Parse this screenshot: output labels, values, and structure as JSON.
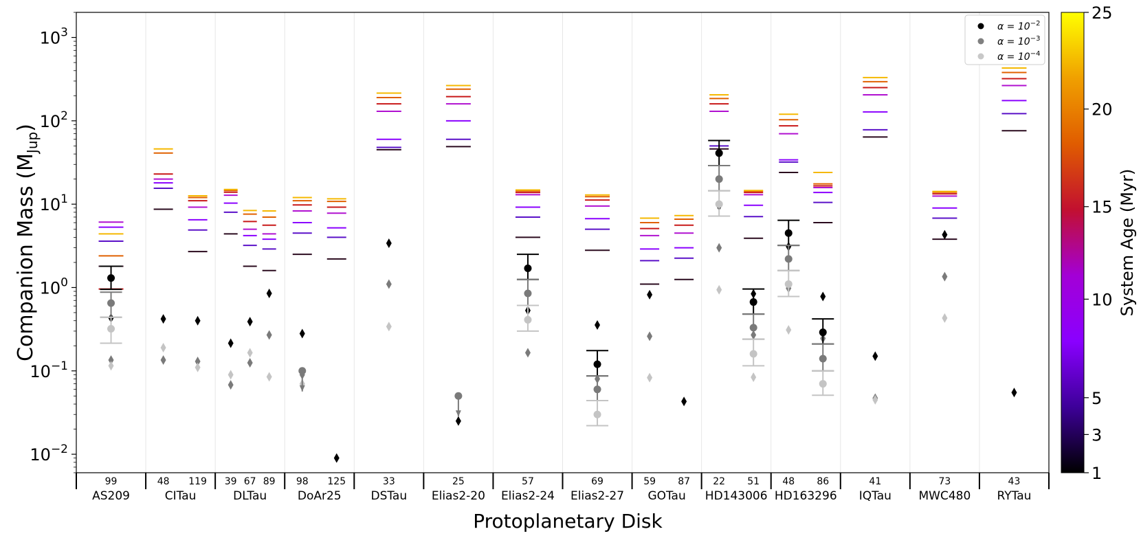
{
  "chart_data": {
    "type": "scatter",
    "xlabel": "Protoplanetary Disk",
    "ylabel": "Companion Mass (M",
    "ylabel_sub": "Jup",
    "ylabel_close": ")",
    "yscale": "log",
    "ylim": [
      0.006,
      2000
    ],
    "yticks": [
      {
        "value": 0.01,
        "base": "10",
        "exp": "−2"
      },
      {
        "value": 0.1,
        "base": "10",
        "exp": "−1"
      },
      {
        "value": 1,
        "base": "10",
        "exp": "0"
      },
      {
        "value": 10,
        "base": "10",
        "exp": "1"
      },
      {
        "value": 100,
        "base": "10",
        "exp": "2"
      },
      {
        "value": 1000,
        "base": "10",
        "exp": "3"
      }
    ],
    "legend": [
      {
        "label": "α = 10",
        "exp": "−2",
        "color": "#000000"
      },
      {
        "label": "α = 10",
        "exp": "−3",
        "color": "#808080"
      },
      {
        "label": "α = 10",
        "exp": "−4",
        "color": "#c8c8c8"
      }
    ],
    "alpha_colors": {
      "a2": "#000000",
      "a3": "#7a7a7a",
      "a4": "#c4c4c4"
    },
    "colorbar": {
      "label": "System Age (Myr)",
      "ticks": [
        "1",
        "3",
        "5",
        "10",
        "15",
        "20",
        "25"
      ],
      "stops": [
        "#000000",
        "#3d0099",
        "#8a00ff",
        "#a300d6",
        "#c21030",
        "#e05c00",
        "#f0a000",
        "#ffff00"
      ]
    },
    "age_colors": [
      "#2a0a1e",
      "#5a10c8",
      "#8a00ff",
      "#b010d0",
      "#c81818",
      "#e06000",
      "#f5b800"
    ],
    "disks": [
      {
        "name": "AS209",
        "gaps": [
          {
            "r": "99",
            "ages": [
              1.8,
              3.6,
              5.3,
              6.1,
              0.96,
              2.4,
              4.4
            ],
            "diamonds": [
              0.43,
              0.135,
              0.115
            ],
            "circles": [
              {
                "v": 1.3,
                "lo": 0.95,
                "hi": 1.8,
                "a": 2
              },
              {
                "v": 0.65,
                "lo": 0.44,
                "hi": 0.88,
                "a": 3
              },
              {
                "v": 0.32,
                "lo": 0.215,
                "hi": 0.44,
                "a": 4
              }
            ],
            "arrow": false
          }
        ]
      },
      {
        "name": "CITau",
        "gaps": [
          {
            "r": "48",
            "ages": [
              8.7,
              15.5,
              18,
              20,
              23,
              41,
              46
            ],
            "diamonds": [
              0.42,
              0.135,
              0.19
            ],
            "circles": [],
            "arrow": false
          },
          {
            "r": "119",
            "ages": [
              2.7,
              4.9,
              6.5,
              9.2,
              11,
              12,
              12.6
            ],
            "diamonds": [
              0.4,
              0.13,
              0.11
            ],
            "circles": [],
            "arrow": false
          }
        ]
      },
      {
        "name": "DLTau",
        "gaps": [
          {
            "r": "39",
            "ages": [
              4.4,
              8,
              10.3,
              12.8,
              13.9,
              14.6,
              15
            ],
            "diamonds": [
              0.215,
              0.068,
              0.09
            ],
            "circles": [],
            "arrow": false
          },
          {
            "r": "67",
            "ages": [
              1.8,
              3.2,
              4.2,
              5,
              6.2,
              7.6,
              8.4
            ],
            "diamonds": [
              0.39,
              0.125,
              0.165
            ],
            "circles": [],
            "arrow": false
          },
          {
            "r": "89",
            "ages": [
              1.6,
              2.9,
              3.8,
              4.4,
              5.6,
              7,
              8.3
            ],
            "diamonds": [
              0.85,
              0.27,
              0.085
            ],
            "circles": [],
            "arrow": false
          }
        ]
      },
      {
        "name": "DoAr25",
        "gaps": [
          {
            "r": "98",
            "ages": [
              2.5,
              4.5,
              6,
              8.3,
              9.8,
              11,
              12
            ],
            "diamonds": [
              0.28,
              0.09,
              0.07
            ],
            "circles": [
              {
                "v": 0.1,
                "lo": null,
                "hi": null,
                "a": 3
              }
            ],
            "arrow": true
          },
          {
            "r": "125",
            "ages": [
              2.2,
              4,
              5.2,
              7.8,
              9.2,
              10.8,
              11.6
            ],
            "diamonds": [
              0.009
            ],
            "circles": [],
            "arrow": false
          }
        ]
      },
      {
        "name": "DSTau",
        "gaps": [
          {
            "r": "33",
            "ages": [
              45,
              48,
              60,
              130,
              160,
              190,
              215
            ],
            "diamonds": [
              3.4,
              1.1,
              0.34
            ],
            "circles": [],
            "arrow": false
          }
        ]
      },
      {
        "name": "Elias2-20",
        "gaps": [
          {
            "r": "25",
            "ages": [
              49,
              60,
              100,
              160,
              195,
              240,
              265
            ],
            "diamonds": [
              0.025
            ],
            "circles": [
              {
                "v": 0.05,
                "lo": null,
                "hi": null,
                "a": 3
              }
            ],
            "arrow": true
          }
        ]
      },
      {
        "name": "Elias2-24",
        "gaps": [
          {
            "r": "57",
            "ages": [
              4,
              7,
              9.2,
              13,
              13.8,
              14.4,
              14.8
            ],
            "diamonds": [
              0.53,
              0.165
            ],
            "circles": [
              {
                "v": 1.7,
                "lo": 1.25,
                "hi": 2.5,
                "a": 2
              },
              {
                "v": 0.85,
                "lo": 0.61,
                "hi": 1.25,
                "a": 3
              },
              {
                "v": 0.41,
                "lo": 0.3,
                "hi": 0.61,
                "a": 4
              }
            ],
            "arrow": false
          }
        ]
      },
      {
        "name": "Elias2-27",
        "gaps": [
          {
            "r": "69",
            "ages": [
              2.8,
              5,
              6.7,
              9.5,
              11.2,
              12.3,
              12.9
            ],
            "diamonds": [
              0.355,
              0.08
            ],
            "circles": [
              {
                "v": 0.12,
                "lo": 0.087,
                "hi": 0.175,
                "a": 2
              },
              {
                "v": 0.06,
                "lo": 0.044,
                "hi": 0.087,
                "a": 3
              },
              {
                "v": 0.03,
                "lo": 0.022,
                "hi": 0.044,
                "a": 4
              }
            ],
            "arrow": false
          }
        ]
      },
      {
        "name": "GOTau",
        "gaps": [
          {
            "r": "59",
            "ages": [
              1.1,
              2.1,
              2.9,
              4.2,
              5.1,
              6,
              6.8
            ],
            "diamonds": [
              0.82,
              0.26,
              0.083
            ],
            "circles": [],
            "arrow": false
          },
          {
            "r": "87",
            "ages": [
              1.25,
              2.25,
              3,
              4.5,
              5.6,
              6.6,
              7.3
            ],
            "diamonds": [
              0.043
            ],
            "circles": [],
            "arrow": false
          }
        ]
      },
      {
        "name": "HD143006",
        "gaps": [
          {
            "r": "22",
            "ages": [
              46,
              50,
              58,
              130,
              160,
              185,
              205
            ],
            "diamonds": [
              9.5,
              3,
              0.94
            ],
            "circles": [
              {
                "v": 41,
                "lo": 29,
                "hi": 58,
                "a": 2
              },
              {
                "v": 20,
                "lo": 14.5,
                "hi": 29,
                "a": 3
              },
              {
                "v": 10,
                "lo": 7.2,
                "hi": 14.5,
                "a": 4
              }
            ],
            "arrow": false
          },
          {
            "r": "51",
            "ages": [
              3.9,
              7.1,
              9.7,
              13,
              13.8,
              14.3,
              14.6
            ],
            "diamonds": [
              0.84,
              0.27,
              0.084
            ],
            "circles": [
              {
                "v": 0.67,
                "lo": 0.48,
                "hi": 0.96,
                "a": 2
              },
              {
                "v": 0.33,
                "lo": 0.24,
                "hi": 0.48,
                "a": 3
              },
              {
                "v": 0.16,
                "lo": 0.115,
                "hi": 0.24,
                "a": 4
              }
            ],
            "arrow": false
          }
        ]
      },
      {
        "name": "HD163296",
        "gaps": [
          {
            "r": "48",
            "ages": [
              24,
              32,
              34,
              70,
              87,
              103,
              120
            ],
            "diamonds": [
              3.1,
              0.98,
              0.31
            ],
            "circles": [
              {
                "v": 4.5,
                "lo": 3.2,
                "hi": 6.4,
                "a": 2
              },
              {
                "v": 2.2,
                "lo": 1.6,
                "hi": 3.2,
                "a": 3
              },
              {
                "v": 1.1,
                "lo": 0.78,
                "hi": 1.6,
                "a": 4
              }
            ],
            "arrow": false
          },
          {
            "r": "86",
            "ages": [
              6,
              10.5,
              13.8,
              15.8,
              16.6,
              17.5,
              24
            ],
            "diamonds": [
              0.78,
              0.245
            ],
            "circles": [
              {
                "v": 0.29,
                "lo": 0.21,
                "hi": 0.42,
                "a": 2
              },
              {
                "v": 0.14,
                "lo": 0.1,
                "hi": 0.21,
                "a": 3
              },
              {
                "v": 0.07,
                "lo": 0.051,
                "hi": 0.1,
                "a": 4
              }
            ],
            "arrow": false
          }
        ]
      },
      {
        "name": "IQTau",
        "gaps": [
          {
            "r": "41",
            "ages": [
              64,
              78,
              128,
              205,
              250,
              295,
              330
            ],
            "diamonds": [
              0.15,
              0.047,
              0.045
            ],
            "circles": [],
            "arrow": false
          }
        ]
      },
      {
        "name": "MWC480",
        "gaps": [
          {
            "r": "73",
            "ages": [
              3.8,
              6.8,
              9,
              12.5,
              13.3,
              13.9,
              14.2
            ],
            "diamonds": [
              4.3,
              1.35,
              0.43
            ],
            "circles": [],
            "arrow": false
          }
        ]
      },
      {
        "name": "RYTau",
        "gaps": [
          {
            "r": "43",
            "ages": [
              76,
              122,
              175,
              265,
              320,
              380,
              430
            ],
            "diamonds": [
              0.055
            ],
            "circles": [],
            "arrow": false
          }
        ]
      }
    ]
  }
}
